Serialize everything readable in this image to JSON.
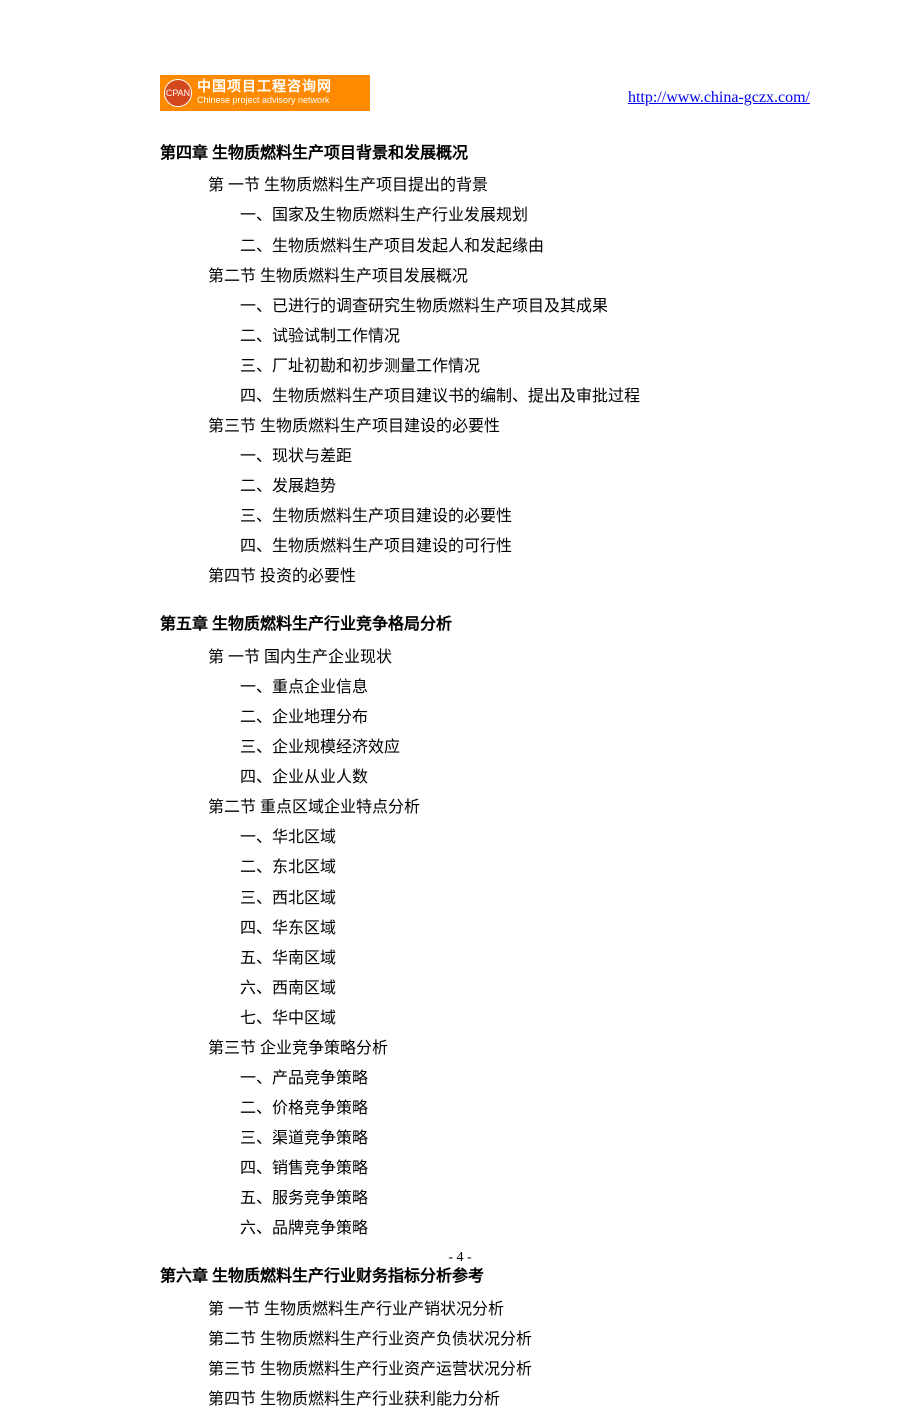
{
  "logo": {
    "badge": "CPAN",
    "title_cn": "中国项目工程咨询网",
    "title_en": "Chinese project advisory network",
    "bg_color": "#ff8a00",
    "circle_color": "#d2481c"
  },
  "header_url": "http://www.china-gczx.com/",
  "link_color": "#0000ee",
  "text_color": "#000000",
  "font_size_pt": 16,
  "chapters": [
    {
      "title": "第四章  生物质燃料生产项目背景和发展概况",
      "sections": [
        {
          "title": "第 一节  生物质燃料生产项目提出的背景",
          "items": [
            "一、国家及生物质燃料生产行业发展规划",
            "二、生物质燃料生产项目发起人和发起缘由"
          ]
        },
        {
          "title": "第二节  生物质燃料生产项目发展概况",
          "items": [
            "一、已进行的调查研究生物质燃料生产项目及其成果",
            "二、试验试制工作情况",
            "三、厂址初勘和初步测量工作情况",
            "四、生物质燃料生产项目建议书的编制、提出及审批过程"
          ]
        },
        {
          "title": "第三节  生物质燃料生产项目建设的必要性",
          "items": [
            "一、现状与差距",
            "二、发展趋势",
            "三、生物质燃料生产项目建设的必要性",
            "四、生物质燃料生产项目建设的可行性"
          ]
        },
        {
          "title": "第四节   投资的必要性",
          "items": []
        }
      ]
    },
    {
      "title": "第五章  生物质燃料生产行业竞争格局分析",
      "sections": [
        {
          "title": "第 一节   国内生产企业现状",
          "items": [
            "一、重点企业信息",
            "二、企业地理分布",
            "三、企业规模经济效应",
            "四、企业从业人数"
          ]
        },
        {
          "title": "第二节   重点区域企业特点分析",
          "items": [
            "一、华北区域",
            "二、东北区域",
            "三、西北区域",
            "四、华东区域",
            "五、华南区域",
            "六、西南区域",
            "七、华中区域"
          ]
        },
        {
          "title": "第三节   企业竞争策略分析",
          "items": [
            "一、产品竞争策略",
            "二、价格竞争策略",
            "三、渠道竞争策略",
            "四、销售竞争策略",
            "五、服务竞争策略",
            "六、品牌竞争策略"
          ]
        }
      ]
    },
    {
      "title": "第六章  生物质燃料生产行业财务指标分析参考",
      "sections": [
        {
          "title": "第 一节  生物质燃料生产行业产销状况分析",
          "items": []
        },
        {
          "title": "第二节  生物质燃料生产行业资产负债状况分析",
          "items": []
        },
        {
          "title": "第三节  生物质燃料生产行业资产运营状况分析",
          "items": []
        },
        {
          "title": "第四节  生物质燃料生产行业获利能力分析",
          "items": []
        }
      ]
    }
  ],
  "page_number": "- 4 -"
}
